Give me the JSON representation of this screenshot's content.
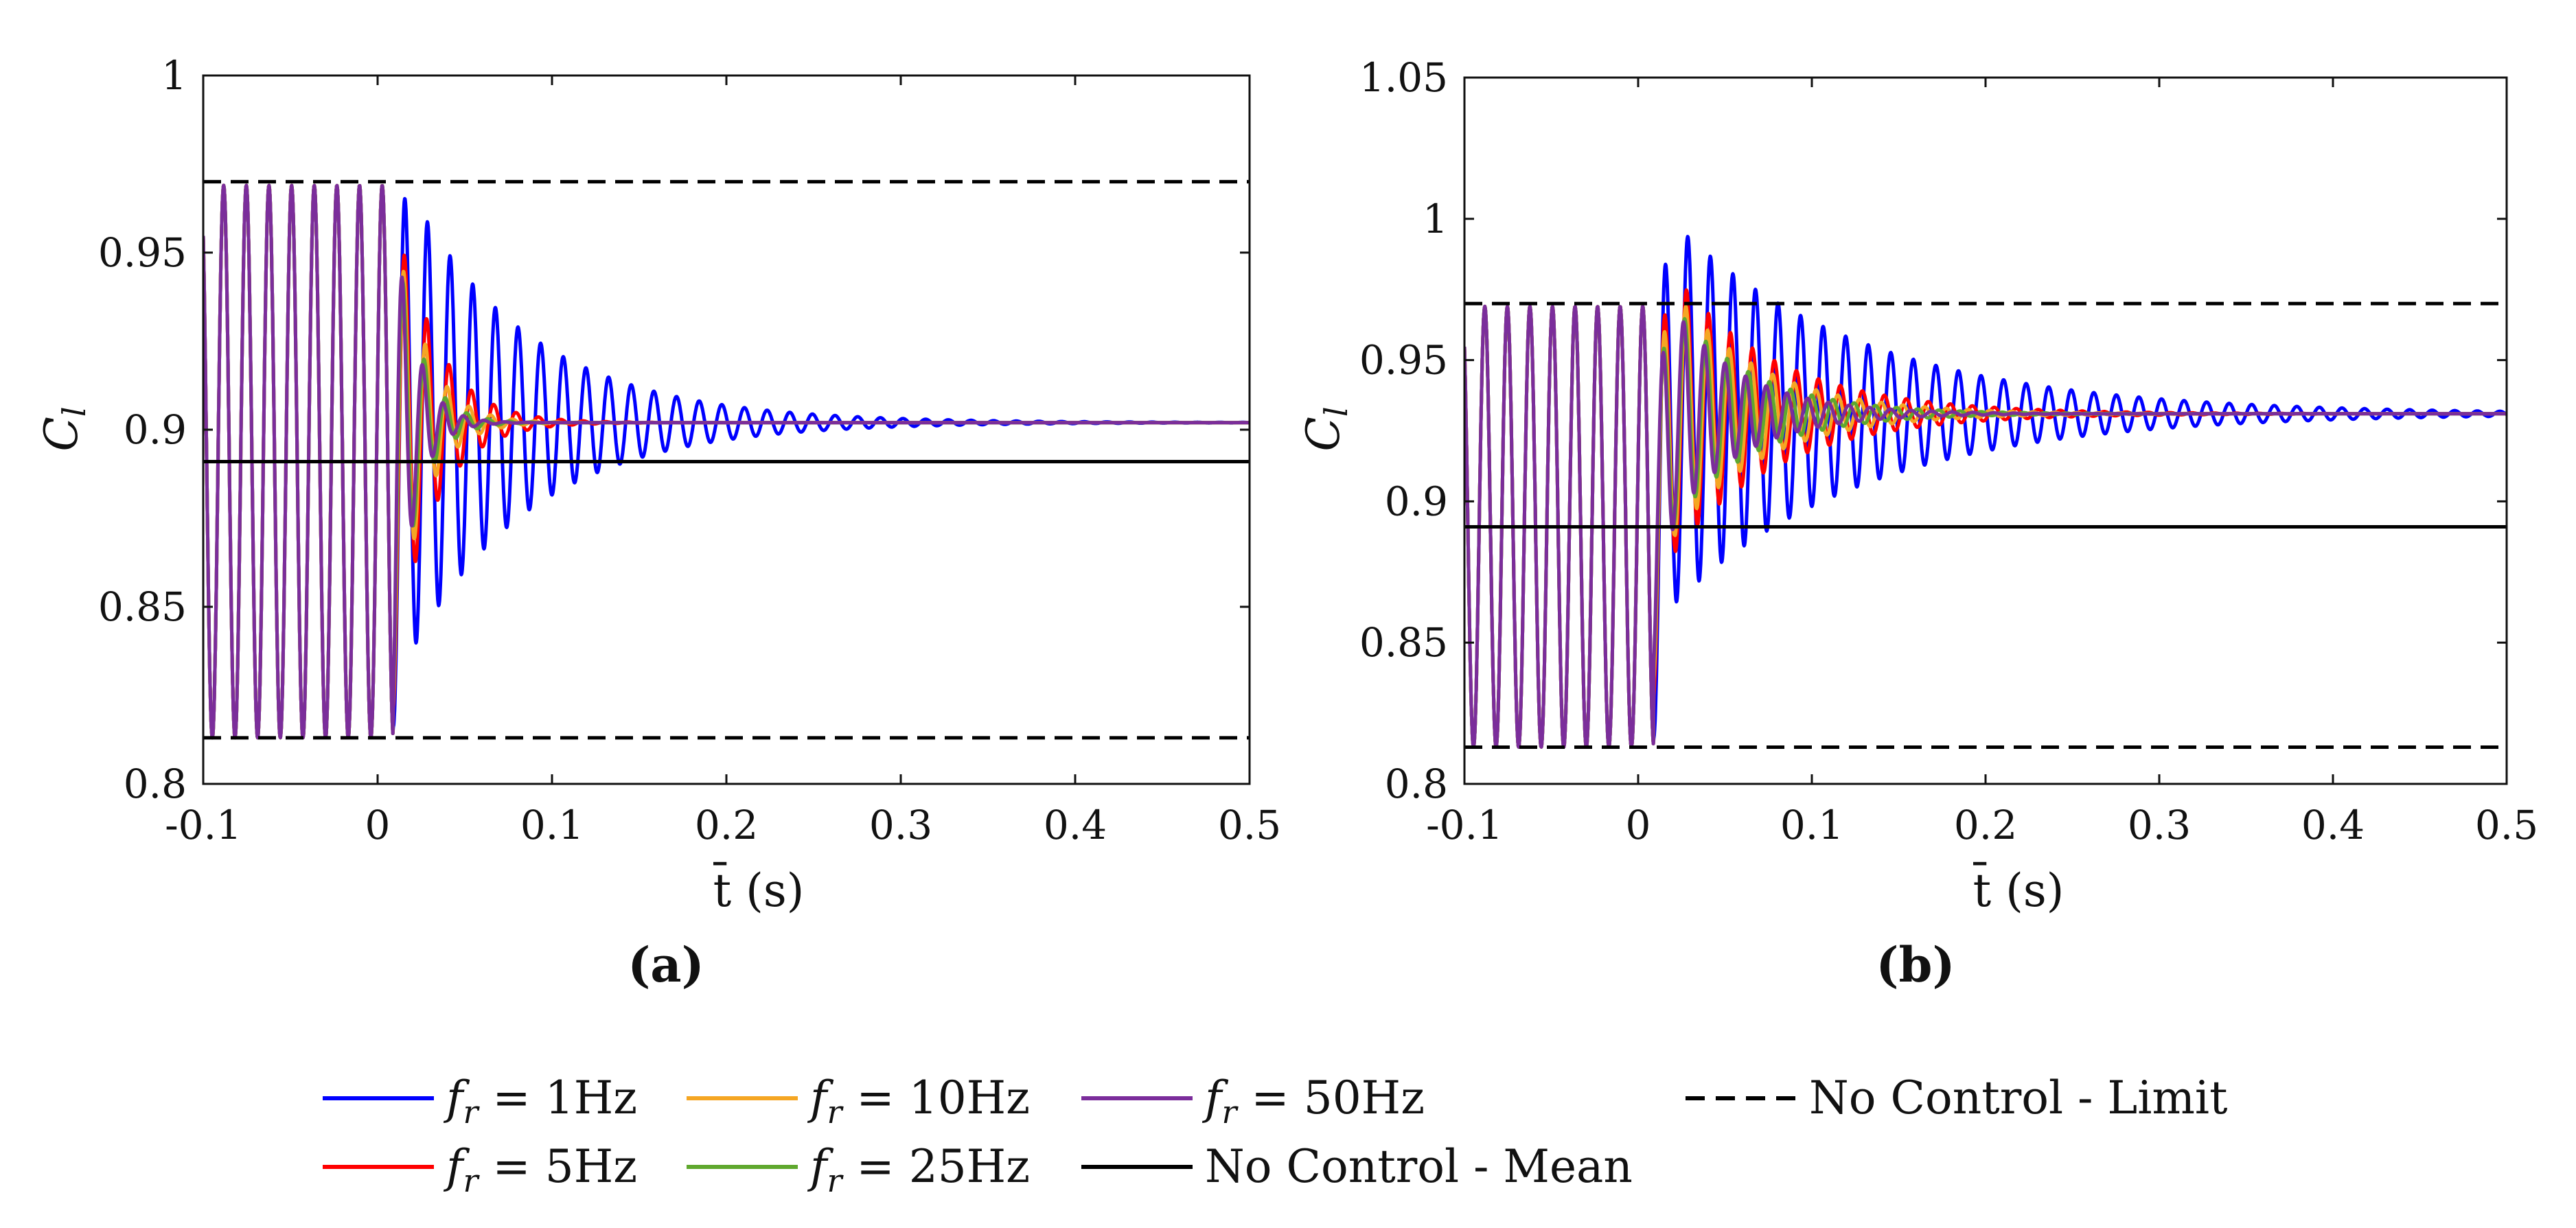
{
  "chart_data": [
    {
      "type": "line",
      "label": "(a)",
      "xlabel": "t̄ (s)",
      "ylabel": "C_l",
      "xlim": [
        -0.1,
        0.5
      ],
      "ylim": [
        0.8,
        1.0
      ],
      "xticks": [
        "-0.1",
        "0",
        "0.1",
        "0.2",
        "0.3",
        "0.4",
        "0.5"
      ],
      "yticks": [
        "0.8",
        "0.85",
        "0.9",
        "0.95",
        "1"
      ],
      "reference_lines": {
        "limit_upper": 0.97,
        "limit_lower": 0.813,
        "mean": 0.891
      },
      "pre_control": {
        "mean": 0.891,
        "amplitude": 0.078,
        "frequency_hz": 77
      },
      "series": [
        {
          "name": "f_r = 1Hz",
          "color": "#0000ff",
          "final": 0.902,
          "decay_time_s": 0.07,
          "peak_amplitude": 0.075,
          "frequency_hz": 77
        },
        {
          "name": "f_r = 5Hz",
          "color": "#ff0000",
          "final": 0.902,
          "decay_time_s": 0.022,
          "peak_amplitude": 0.07,
          "frequency_hz": 78
        },
        {
          "name": "f_r = 10Hz",
          "color": "#f5a623",
          "final": 0.902,
          "decay_time_s": 0.016,
          "peak_amplitude": 0.07,
          "frequency_hz": 80
        },
        {
          "name": "f_r = 25Hz",
          "color": "#5fa82e",
          "final": 0.902,
          "decay_time_s": 0.013,
          "peak_amplitude": 0.07,
          "frequency_hz": 82
        },
        {
          "name": "f_r = 50Hz",
          "color": "#7b2d9b",
          "final": 0.902,
          "decay_time_s": 0.011,
          "peak_amplitude": 0.075,
          "frequency_hz": 85
        }
      ]
    },
    {
      "type": "line",
      "label": "(b)",
      "xlabel": "t̄ (s)",
      "ylabel": "C_l",
      "xlim": [
        -0.1,
        0.5
      ],
      "ylim": [
        0.8,
        1.05
      ],
      "xticks": [
        "-0.1",
        "0",
        "0.1",
        "0.2",
        "0.3",
        "0.4",
        "0.5"
      ],
      "yticks": [
        "0.8",
        "0.85",
        "0.9",
        "0.95",
        "1",
        "1.05"
      ],
      "reference_lines": {
        "limit_upper": 0.97,
        "limit_lower": 0.813,
        "mean": 0.891
      },
      "pre_control": {
        "mean": 0.891,
        "amplitude": 0.078,
        "frequency_hz": 77
      },
      "series": [
        {
          "name": "f_r = 1Hz",
          "color": "#0000ff",
          "final": 0.931,
          "decay_time_s": 0.11,
          "peak_amplitude": 0.075,
          "frequency_hz": 77
        },
        {
          "name": "f_r = 5Hz",
          "color": "#ff0000",
          "final": 0.931,
          "decay_time_s": 0.06,
          "peak_amplitude": 0.06,
          "frequency_hz": 79
        },
        {
          "name": "f_r = 10Hz",
          "color": "#f5a623",
          "final": 0.931,
          "decay_time_s": 0.05,
          "peak_amplitude": 0.055,
          "frequency_hz": 80
        },
        {
          "name": "f_r = 25Hz",
          "color": "#5fa82e",
          "final": 0.931,
          "decay_time_s": 0.045,
          "peak_amplitude": 0.05,
          "frequency_hz": 82
        },
        {
          "name": "f_r = 50Hz",
          "color": "#7b2d9b",
          "final": 0.931,
          "decay_time_s": 0.04,
          "peak_amplitude": 0.05,
          "frequency_hz": 84
        }
      ]
    }
  ],
  "legend": {
    "items": [
      {
        "prefix": "f",
        "sub": "r",
        "text": " = 1Hz",
        "color": "#0000ff",
        "style": "solid"
      },
      {
        "prefix": "f",
        "sub": "r",
        "text": " = 10Hz",
        "color": "#f5a623",
        "style": "solid"
      },
      {
        "prefix": "f",
        "sub": "r",
        "text": " = 50Hz",
        "color": "#7b2d9b",
        "style": "solid"
      },
      {
        "prefix": "",
        "sub": "",
        "text": "No Control - Limit",
        "color": "#000000",
        "style": "dashed"
      },
      {
        "prefix": "f",
        "sub": "r",
        "text": " = 5Hz",
        "color": "#ff0000",
        "style": "solid"
      },
      {
        "prefix": "f",
        "sub": "r",
        "text": " = 25Hz",
        "color": "#5fa82e",
        "style": "solid"
      },
      {
        "prefix": "",
        "sub": "",
        "text": "No Control - Mean",
        "color": "#000000",
        "style": "solid"
      }
    ]
  }
}
